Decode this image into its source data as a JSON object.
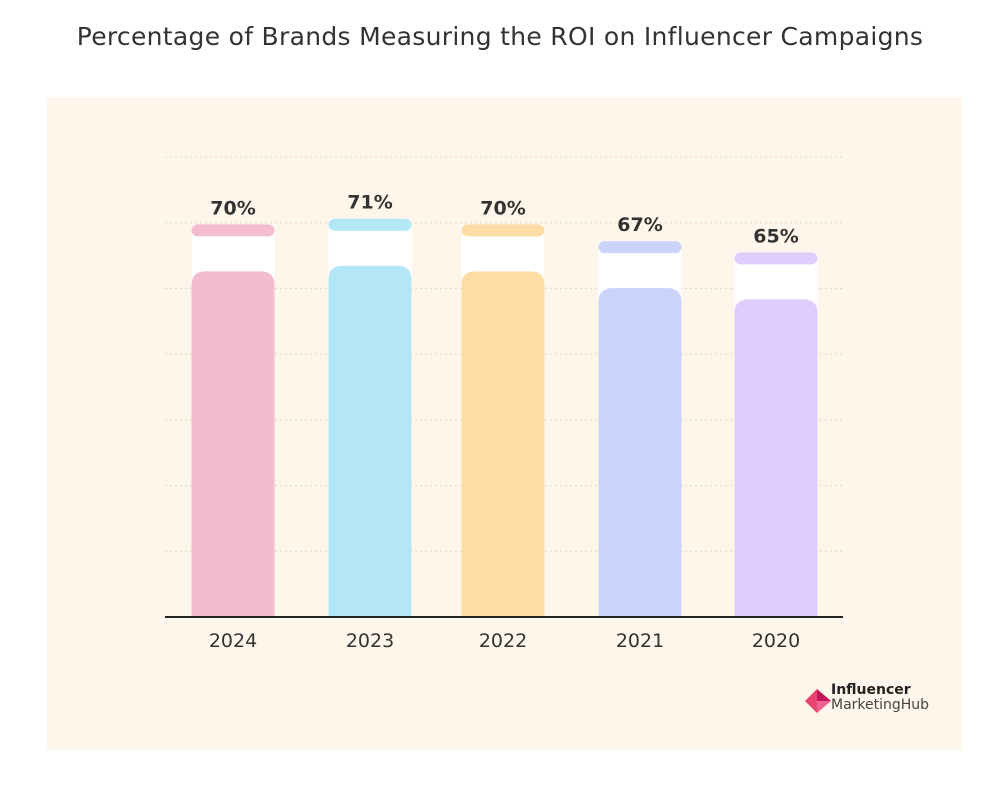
{
  "chart_data": {
    "type": "bar",
    "title": "Percentage of Brands Measuring the ROI on Influencer Campaigns",
    "categories": [
      "2024",
      "2023",
      "2022",
      "2021",
      "2020"
    ],
    "values": [
      70,
      71,
      70,
      67,
      65
    ],
    "data_labels": [
      "70%",
      "71%",
      "70%",
      "67%",
      "65%"
    ],
    "colors": [
      "#f4bcd0",
      "#b3e7f8",
      "#fddda3",
      "#cbd3fa",
      "#e0cdfd"
    ],
    "xlabel": "",
    "ylabel": "",
    "ylim": [
      0,
      82
    ],
    "grid": true,
    "legend": "none"
  },
  "logo": {
    "line1": "Influencer",
    "line2": "MarketingHub",
    "color": "#e8436e"
  },
  "background": "#fef6ea"
}
